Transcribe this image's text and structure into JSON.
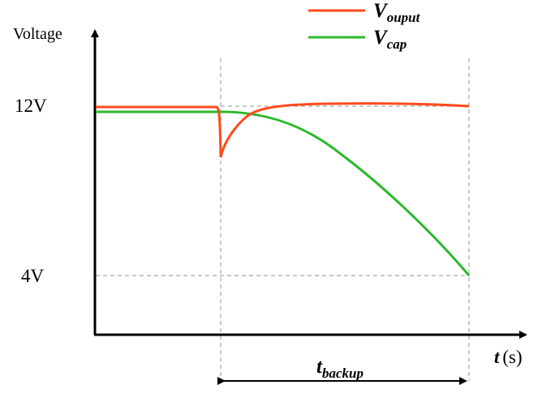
{
  "diagram": {
    "y_axis_label": "Voltage",
    "x_axis_label": {
      "var": "t",
      "unit": "(s)"
    },
    "levels": [
      {
        "label": "12V",
        "value": 12
      },
      {
        "label": "4V",
        "value": 4
      }
    ],
    "legend": [
      {
        "base": "V",
        "sub": "ouput",
        "color": "#ff4a1c"
      },
      {
        "base": "V",
        "sub": "cap",
        "color": "#2cb82c"
      }
    ],
    "interval": {
      "base": "t",
      "sub": "backup"
    },
    "colors": {
      "output": "#ff4a1c",
      "cap": "#2cb82c",
      "axis": "#000000",
      "guide": "#a6a6a6"
    }
  }
}
